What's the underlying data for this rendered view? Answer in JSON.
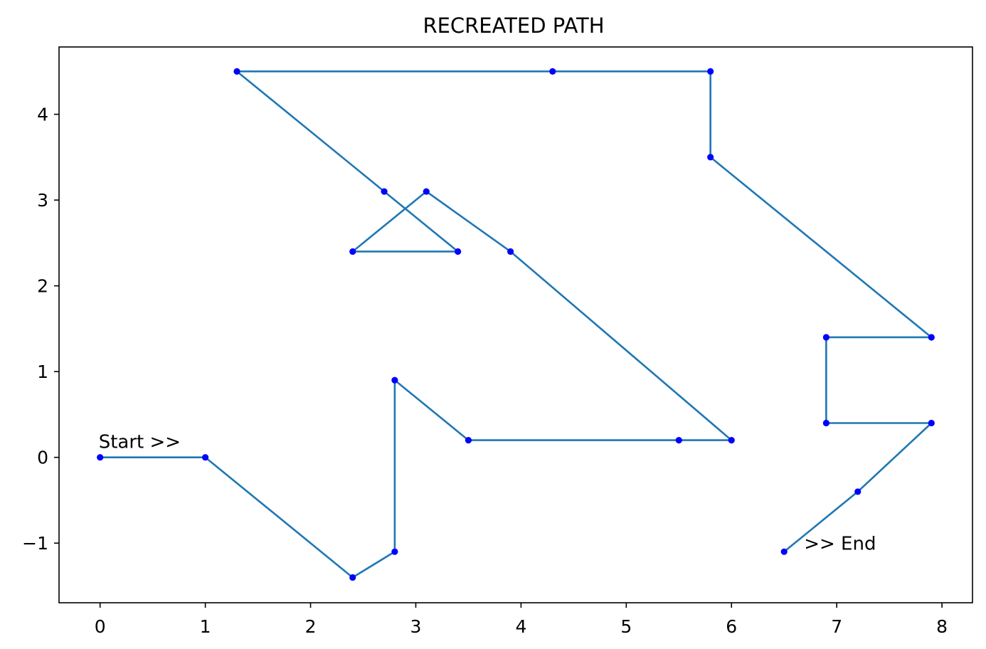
{
  "chart_data": {
    "type": "line",
    "title": "RECREATED PATH",
    "xlabel": "",
    "ylabel": "",
    "xlim": [
      -0.39,
      8.29
    ],
    "ylim": [
      -1.695,
      4.785
    ],
    "grid": false,
    "x_ticks": [
      0,
      1,
      2,
      3,
      4,
      5,
      6,
      7,
      8
    ],
    "x_tick_labels": [
      "0",
      "1",
      "2",
      "3",
      "4",
      "5",
      "6",
      "7",
      "8"
    ],
    "y_ticks": [
      -1,
      0,
      1,
      2,
      3,
      4
    ],
    "y_tick_labels": [
      "−1",
      "0",
      "1",
      "2",
      "3",
      "4"
    ],
    "line_color": "#1f77b4",
    "marker_color": "#0000ff",
    "series": [
      {
        "x": [
          0,
          1,
          2.4,
          2.8,
          2.8,
          3.5,
          5.5,
          6,
          3.9,
          3.1,
          2.4,
          3.4,
          2.7,
          1.3,
          4.3,
          5.8,
          5.8,
          7.9,
          6.9,
          6.9,
          7.9,
          7.2,
          6.5
        ],
        "y": [
          0,
          0,
          -1.4,
          -1.1,
          0.9,
          0.2,
          0.2,
          0.2,
          2.4,
          3.1,
          2.4,
          2.4,
          3.1,
          4.5,
          4.5,
          4.5,
          3.5,
          1.4,
          1.4,
          0.4,
          0.4,
          -0.4,
          -1.1
        ]
      }
    ],
    "annotations": [
      {
        "text": "Start >>",
        "x": 0,
        "y": 0
      },
      {
        "text": ">> End",
        "x": 6.5,
        "y": -1.1
      }
    ]
  }
}
